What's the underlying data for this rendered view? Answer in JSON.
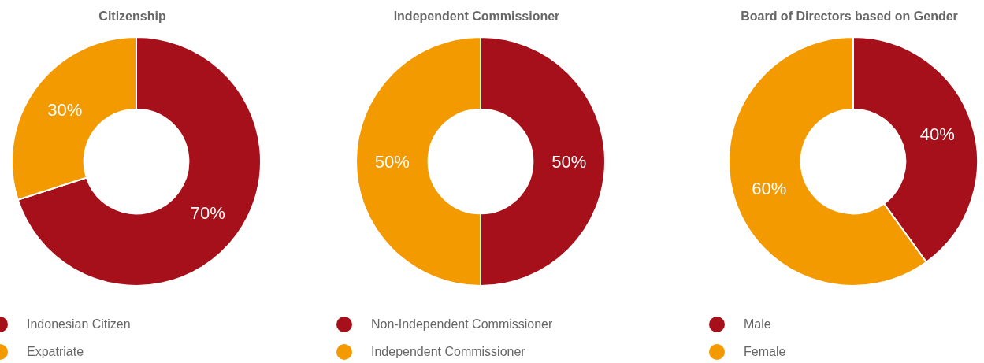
{
  "chart_data": [
    {
      "type": "donut",
      "title": "Citizenship",
      "categories": [
        "Indonesian Citizen",
        "Expatriate"
      ],
      "values": [
        70,
        30
      ],
      "value_labels": [
        "70%",
        "30%"
      ],
      "colors": [
        "#a5101a",
        "#f29a00"
      ],
      "legend": "bottom left"
    },
    {
      "type": "donut",
      "title": "Independent Commissioner",
      "categories": [
        "Non-Independent Commissioner",
        "Independent Commissioner"
      ],
      "values": [
        50,
        50
      ],
      "value_labels": [
        "50%",
        "50%"
      ],
      "colors": [
        "#a5101a",
        "#f29a00"
      ],
      "legend": "bottom left"
    },
    {
      "type": "donut",
      "title": "Board of Directors based on Gender",
      "categories": [
        "Male",
        "Female"
      ],
      "values": [
        40,
        60
      ],
      "value_labels": [
        "40%",
        "60%"
      ],
      "colors": [
        "#a5101a",
        "#f29a00"
      ],
      "legend": "bottom left"
    }
  ]
}
